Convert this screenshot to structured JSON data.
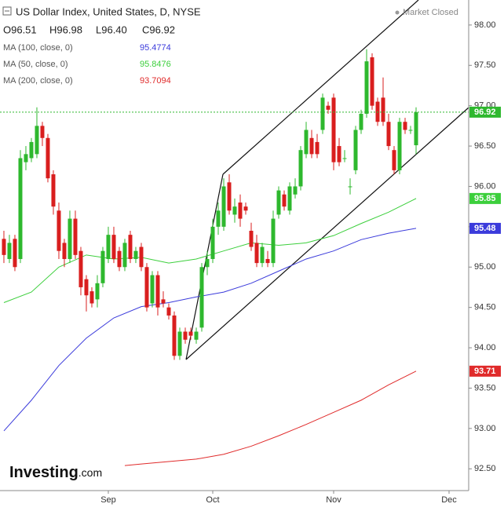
{
  "chart_data": {
    "type": "candlestick",
    "title": "US Dollar Index, United States, D, NYSE",
    "status": "Market Closed",
    "ohlc_labels": [
      "O96.51",
      "H96.98",
      "L96.40",
      "C96.92"
    ],
    "logo": [
      "Investing",
      ".com"
    ],
    "up_color": "#2eb82e",
    "down_color": "#d91e1e",
    "x": [
      0,
      1,
      2,
      3,
      4,
      5,
      6,
      7,
      8,
      9,
      10,
      11,
      12,
      13,
      14,
      15,
      16,
      17,
      18,
      19,
      20,
      21,
      22,
      23,
      24,
      25,
      26,
      27,
      28,
      29,
      30,
      31,
      32,
      33,
      34,
      35,
      36,
      37,
      38,
      39,
      40,
      41,
      42,
      43,
      44,
      45,
      46,
      47,
      48,
      49,
      50,
      51,
      52,
      53,
      54,
      55,
      56,
      57,
      58,
      59,
      60,
      61,
      62,
      63,
      64,
      65,
      66,
      67,
      68,
      69,
      70,
      71,
      72,
      73,
      74,
      75
    ],
    "open": [
      95.35,
      95.1,
      95.35,
      95.1,
      96.3,
      96.35,
      96.4,
      96.75,
      96.6,
      96.15,
      95.7,
      95.3,
      95.1,
      95.6,
      95.2,
      94.85,
      94.7,
      94.6,
      94.8,
      95.1,
      95.4,
      95.2,
      95.0,
      95.4,
      95.1,
      95.25,
      95.0,
      94.55,
      94.9,
      94.6,
      94.5,
      94.4,
      93.9,
      94.2,
      94.2,
      94.1,
      94.25,
      95.0,
      95.1,
      95.5,
      95.5,
      96.05,
      95.65,
      95.8,
      95.75,
      95.45,
      95.3,
      95.05,
      95.1,
      95.05,
      95.65,
      95.9,
      95.7,
      95.9,
      96.0,
      96.4,
      96.6,
      96.55,
      96.7,
      97.0,
      97.1,
      96.5,
      96.35,
      96.0,
      96.2,
      96.7,
      96.9,
      97.6,
      97.05,
      97.1,
      96.8,
      96.45,
      96.2,
      96.8,
      96.7,
      96.51
    ],
    "high": [
      95.45,
      95.4,
      95.4,
      96.45,
      96.5,
      96.6,
      96.98,
      96.8,
      96.65,
      96.2,
      95.8,
      95.35,
      95.7,
      95.7,
      95.25,
      94.9,
      94.75,
      94.9,
      95.25,
      95.5,
      95.5,
      95.25,
      95.35,
      95.45,
      95.25,
      95.3,
      95.05,
      94.95,
      94.95,
      94.7,
      94.55,
      94.45,
      94.25,
      94.25,
      94.25,
      94.25,
      95.05,
      95.2,
      95.6,
      95.8,
      96.1,
      96.15,
      95.85,
      95.9,
      95.8,
      95.55,
      95.4,
      95.3,
      95.2,
      95.7,
      96.0,
      95.95,
      96.05,
      96.1,
      96.5,
      96.8,
      96.7,
      96.65,
      97.15,
      97.05,
      97.15,
      96.6,
      96.45,
      96.1,
      96.75,
      96.95,
      97.7,
      97.65,
      97.1,
      97.35,
      96.9,
      96.5,
      96.85,
      96.85,
      96.75,
      96.98
    ],
    "low": [
      95.05,
      95.05,
      94.95,
      95.05,
      96.2,
      96.3,
      96.35,
      96.5,
      96.05,
      95.65,
      95.1,
      95.0,
      95.05,
      95.1,
      94.65,
      94.45,
      94.5,
      94.5,
      94.75,
      95.05,
      95.05,
      94.95,
      94.95,
      95.05,
      95.05,
      94.95,
      94.45,
      94.5,
      94.4,
      94.5,
      94.35,
      93.85,
      93.85,
      94.05,
      94.1,
      94.05,
      94.2,
      94.9,
      95.05,
      95.4,
      95.45,
      95.65,
      95.55,
      95.5,
      95.65,
      95.2,
      95.0,
      95.0,
      95.0,
      95.0,
      95.6,
      95.7,
      95.65,
      95.85,
      95.95,
      96.35,
      96.35,
      96.35,
      96.65,
      96.9,
      96.2,
      96.25,
      96.3,
      95.9,
      96.15,
      96.65,
      96.85,
      96.95,
      96.75,
      96.75,
      96.45,
      96.15,
      96.15,
      96.65,
      96.65,
      96.4
    ],
    "close": [
      95.15,
      95.3,
      95.0,
      96.35,
      96.4,
      96.55,
      96.75,
      96.6,
      96.1,
      95.75,
      95.2,
      95.1,
      95.6,
      95.15,
      94.75,
      94.65,
      94.55,
      94.8,
      95.2,
      95.4,
      95.1,
      95.0,
      95.3,
      95.1,
      95.2,
      95.0,
      94.5,
      94.9,
      94.5,
      94.55,
      94.4,
      93.9,
      94.2,
      94.1,
      94.15,
      94.2,
      95.0,
      95.1,
      95.5,
      95.7,
      96.0,
      95.7,
      95.75,
      95.6,
      95.7,
      95.25,
      95.05,
      95.25,
      95.05,
      95.6,
      95.95,
      95.75,
      96.0,
      96.0,
      96.45,
      96.7,
      96.4,
      96.4,
      97.1,
      96.95,
      96.3,
      96.3,
      96.35,
      96.0,
      96.7,
      96.9,
      97.55,
      97.0,
      96.8,
      96.8,
      96.5,
      96.2,
      96.8,
      96.7,
      96.7,
      96.92
    ],
    "lines": [
      {
        "name": "MA (100, close, 0)",
        "color": "#3b3bdb",
        "legend_value": 95.4774,
        "last_label": "95.48",
        "x": [
          0,
          5,
          10,
          15,
          20,
          25,
          30,
          35,
          40,
          45,
          50,
          55,
          60,
          65,
          70,
          75
        ],
        "values": [
          92.97,
          93.35,
          93.78,
          94.12,
          94.37,
          94.51,
          94.56,
          94.63,
          94.69,
          94.8,
          94.95,
          95.1,
          95.2,
          95.34,
          95.42,
          95.48
        ]
      },
      {
        "name": "MA (50, close, 0)",
        "color": "#3ccf3c",
        "legend_value": 95.8476,
        "last_label": "95.85",
        "x": [
          0,
          5,
          10,
          15,
          20,
          25,
          30,
          35,
          40,
          45,
          50,
          55,
          60,
          65,
          70,
          75
        ],
        "values": [
          94.56,
          94.69,
          95.0,
          95.15,
          95.1,
          95.12,
          95.05,
          95.1,
          95.2,
          95.3,
          95.27,
          95.3,
          95.39,
          95.54,
          95.68,
          95.85
        ]
      },
      {
        "name": "MA (200, close, 0)",
        "color": "#e02b2b",
        "legend_value": 93.7094,
        "last_label": "93.71",
        "x": [
          22,
          25,
          30,
          35,
          40,
          45,
          50,
          55,
          60,
          65,
          70,
          75
        ],
        "values": [
          92.54,
          92.56,
          92.59,
          92.62,
          92.68,
          92.78,
          92.91,
          93.05,
          93.2,
          93.35,
          93.54,
          93.71
        ]
      }
    ],
    "xlim": [
      -0.71,
      84.57
    ],
    "ylim": [
      92.23,
      98.31
    ],
    "xticks": [
      {
        "value": 19,
        "label": "Sep"
      },
      {
        "value": 38,
        "label": "Oct"
      },
      {
        "value": 60,
        "label": "Nov"
      },
      {
        "value": 81,
        "label": "Dec"
      }
    ],
    "yticks": [
      {
        "value": 92.5,
        "label": "92.50"
      },
      {
        "value": 93,
        "label": "93.00"
      },
      {
        "value": 93.5,
        "label": "93.50"
      },
      {
        "value": 94,
        "label": "94.00"
      },
      {
        "value": 94.5,
        "label": "94.50"
      },
      {
        "value": 95,
        "label": "95.00"
      },
      {
        "value": 95.5,
        "label": "95.50"
      },
      {
        "value": 96,
        "label": "96.00"
      },
      {
        "value": 96.5,
        "label": "96.50"
      },
      {
        "value": 97,
        "label": "97.00"
      },
      {
        "value": 97.5,
        "label": "97.50"
      },
      {
        "value": 98,
        "label": "98.00"
      }
    ],
    "grid": false
  }
}
